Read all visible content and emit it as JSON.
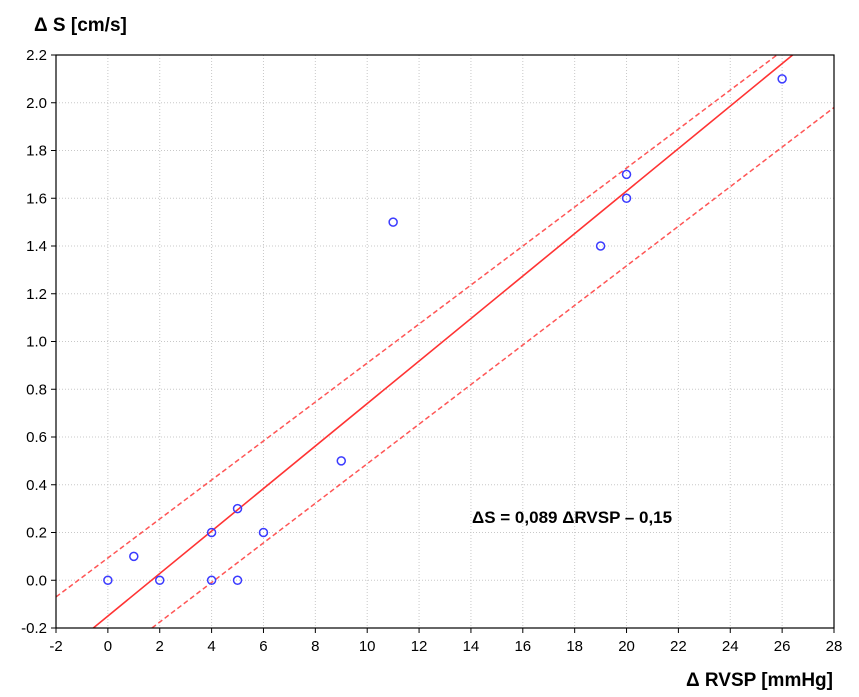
{
  "chart_data": {
    "type": "scatter",
    "title": "",
    "xlabel": "Δ RVSP [mmHg]",
    "ylabel": "Δ S [cm/s]",
    "xlim": [
      -2,
      28
    ],
    "ylim": [
      -0.2,
      2.2
    ],
    "x_ticks": [
      "-2",
      "0",
      "2",
      "4",
      "6",
      "8",
      "10",
      "12",
      "14",
      "16",
      "18",
      "20",
      "22",
      "24",
      "26",
      "28"
    ],
    "y_ticks": [
      "-0.2",
      "0.0",
      "0.2",
      "0.4",
      "0.6",
      "0.8",
      "1.0",
      "1.2",
      "1.4",
      "1.6",
      "1.8",
      "2.0",
      "2.2"
    ],
    "grid": true,
    "points": [
      {
        "x": 0,
        "y": 0.0
      },
      {
        "x": 1,
        "y": 0.1
      },
      {
        "x": 2,
        "y": 0.0
      },
      {
        "x": 4,
        "y": 0.2
      },
      {
        "x": 4,
        "y": 0.0
      },
      {
        "x": 5,
        "y": 0.3
      },
      {
        "x": 5,
        "y": 0.0
      },
      {
        "x": 6,
        "y": 0.2
      },
      {
        "x": 9,
        "y": 0.5
      },
      {
        "x": 11,
        "y": 1.5
      },
      {
        "x": 19,
        "y": 1.4
      },
      {
        "x": 20,
        "y": 1.7
      },
      {
        "x": 20,
        "y": 1.6
      },
      {
        "x": 26,
        "y": 2.1
      }
    ],
    "regression": {
      "slope": 0.089,
      "intercept": -0.15
    },
    "confidence_band": {
      "upper": [
        [
          -2,
          -0.07
        ],
        [
          25.8,
          2.2
        ]
      ],
      "lower": [
        [
          1.7,
          -0.2
        ],
        [
          28,
          1.98
        ]
      ]
    },
    "annotation": "ΔS = 0,089 ΔRVSP – 0,15",
    "colors": {
      "points": "#3b3bff",
      "regression": "#ff3333",
      "band": "#ff5555",
      "grid": "#c8c8c8",
      "frame": "#000000"
    }
  }
}
